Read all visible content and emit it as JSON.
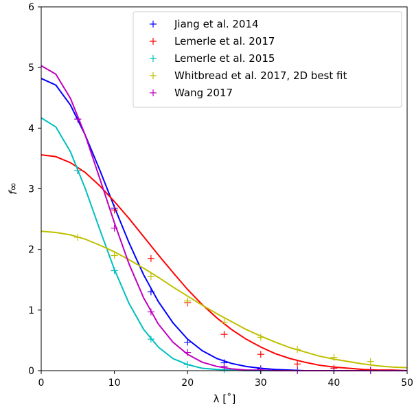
{
  "chart_data": {
    "type": "scatter",
    "xlabel": "λ [˚]",
    "ylabel": "f∞",
    "xlim": [
      0,
      50
    ],
    "ylim": [
      0,
      6
    ],
    "xticks": [
      0,
      10,
      20,
      30,
      40,
      50
    ],
    "yticks": [
      0,
      1,
      2,
      3,
      4,
      5,
      6
    ],
    "xtick_labels": [
      "0",
      "10",
      "20",
      "30",
      "40",
      "50"
    ],
    "ytick_labels": [
      "0",
      "1",
      "2",
      "3",
      "4",
      "5",
      "6"
    ],
    "grid": false,
    "legend_position": "top-right",
    "series": [
      {
        "name": "Jiang et al. 2014",
        "color": "#0000ff",
        "x": [
          5,
          10,
          15,
          20,
          25,
          30,
          35,
          40,
          45
        ],
        "y": [
          4.15,
          2.68,
          1.3,
          0.47,
          0.13,
          0.03,
          0.0,
          0.0,
          0.0
        ],
        "fit_x": [
          0,
          2,
          4,
          6,
          8,
          10,
          12,
          14,
          16,
          18,
          20,
          22,
          24,
          26,
          28,
          30,
          32,
          34,
          36,
          38,
          40,
          42,
          44,
          46,
          48,
          50
        ],
        "fit_y": [
          4.82,
          4.71,
          4.38,
          3.89,
          3.31,
          2.7,
          2.11,
          1.58,
          1.14,
          0.79,
          0.52,
          0.33,
          0.2,
          0.12,
          0.07,
          0.04,
          0.02,
          0.01,
          0.0,
          0.0,
          0.0,
          0.0,
          0.0,
          0.0,
          0.0,
          0.0
        ]
      },
      {
        "name": "Lemerle et al. 2017",
        "color": "#ff0000",
        "x": [
          5,
          10,
          15,
          20,
          25,
          30,
          35,
          40,
          45
        ],
        "y": [
          3.3,
          2.65,
          1.85,
          1.12,
          0.6,
          0.27,
          0.11,
          0.04,
          0.01
        ],
        "fit_x": [
          0,
          2,
          4,
          6,
          8,
          10,
          12,
          14,
          16,
          18,
          20,
          22,
          24,
          26,
          28,
          30,
          32,
          34,
          36,
          38,
          40,
          42,
          44,
          46,
          48,
          50
        ],
        "fit_y": [
          3.56,
          3.53,
          3.43,
          3.27,
          3.05,
          2.79,
          2.51,
          2.21,
          1.91,
          1.62,
          1.34,
          1.09,
          0.87,
          0.68,
          0.52,
          0.39,
          0.28,
          0.2,
          0.14,
          0.09,
          0.06,
          0.04,
          0.02,
          0.01,
          0.01,
          0.0
        ]
      },
      {
        "name": "Lemerle et al. 2015",
        "color": "#00bfbf",
        "x": [
          5,
          10,
          15,
          20,
          25,
          30,
          35,
          40,
          45
        ],
        "y": [
          3.3,
          1.65,
          0.52,
          0.1,
          0.02,
          0.0,
          0.0,
          0.0,
          0.0
        ],
        "fit_x": [
          0,
          2,
          4,
          6,
          8,
          10,
          12,
          14,
          16,
          18,
          20,
          22,
          24,
          26,
          28,
          30,
          32,
          34,
          36,
          38,
          40,
          42,
          44,
          46,
          48,
          50
        ],
        "fit_y": [
          4.17,
          4.02,
          3.61,
          3.01,
          2.33,
          1.67,
          1.11,
          0.68,
          0.39,
          0.2,
          0.1,
          0.04,
          0.02,
          0.01,
          0.0,
          0.0,
          0.0,
          0.0,
          0.0,
          0.0,
          0.0,
          0.0,
          0.0,
          0.0,
          0.0,
          0.0
        ]
      },
      {
        "name": "Whitbread et al. 2017, 2D best fit",
        "color": "#bfbf00",
        "x": [
          5,
          10,
          15,
          20,
          25,
          30,
          35,
          40,
          45
        ],
        "y": [
          2.2,
          1.9,
          1.55,
          1.15,
          0.8,
          0.55,
          0.35,
          0.22,
          0.15
        ],
        "fit_x": [
          0,
          2,
          4,
          6,
          8,
          10,
          12,
          14,
          16,
          18,
          20,
          22,
          24,
          26,
          28,
          30,
          32,
          34,
          36,
          38,
          40,
          42,
          44,
          46,
          48,
          50
        ],
        "fit_y": [
          2.3,
          2.28,
          2.24,
          2.17,
          2.07,
          1.96,
          1.83,
          1.69,
          1.54,
          1.38,
          1.23,
          1.08,
          0.94,
          0.81,
          0.68,
          0.57,
          0.47,
          0.38,
          0.31,
          0.24,
          0.19,
          0.15,
          0.11,
          0.08,
          0.06,
          0.05
        ]
      },
      {
        "name": "Wang 2017",
        "color": "#bf00bf",
        "x": [
          5,
          10,
          15,
          20,
          25,
          30,
          35,
          40,
          45
        ],
        "y": [
          4.15,
          2.35,
          0.97,
          0.3,
          0.07,
          0.01,
          0.0,
          0.0,
          0.0
        ],
        "fit_x": [
          0,
          2,
          4,
          6,
          8,
          10,
          12,
          14,
          16,
          18,
          20,
          22,
          24,
          26,
          28,
          30,
          32,
          34,
          36,
          38,
          40,
          42,
          44,
          46,
          48,
          50
        ],
        "fit_y": [
          5.03,
          4.89,
          4.49,
          3.89,
          3.17,
          2.44,
          1.76,
          1.2,
          0.77,
          0.47,
          0.27,
          0.14,
          0.07,
          0.03,
          0.01,
          0.01,
          0.0,
          0.0,
          0.0,
          0.0,
          0.0,
          0.0,
          0.0,
          0.0,
          0.0,
          0.0
        ]
      }
    ]
  }
}
